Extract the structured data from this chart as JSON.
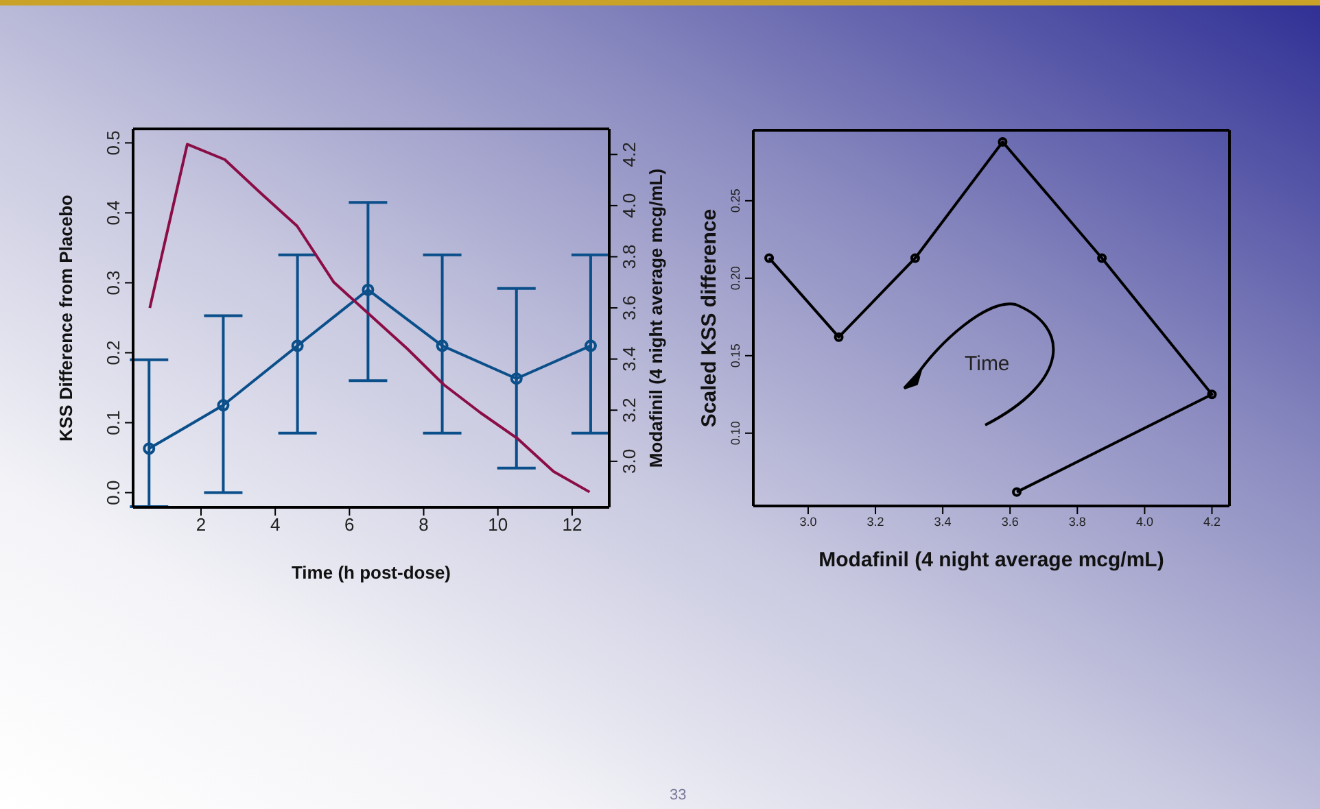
{
  "chart_data": [
    {
      "type": "line",
      "xlabel": "Time (h post-dose)",
      "ylabel": "KSS Difference from Placebo",
      "y2label": "Modafinil (4 night average mcg/mL)",
      "marker": "circle",
      "grid": false,
      "x": [
        0.6,
        2.6,
        4.6,
        6.5,
        8.5,
        10.5,
        12.5
      ],
      "xlim": [
        0.17,
        13.0
      ],
      "xticks": [
        2,
        4,
        6,
        8,
        10,
        12
      ],
      "ylim": [
        -0.021,
        0.52
      ],
      "yticks": [
        {
          "value": 0,
          "label": "0.0"
        },
        0.1,
        0.2,
        0.3,
        0.4,
        0.5
      ],
      "y2lim": [
        2.82,
        4.3
      ],
      "y2ticks": [
        {
          "value": 3,
          "label": "3.0"
        },
        3.2,
        3.4,
        3.6,
        3.8,
        {
          "value": 4,
          "label": "4.0"
        },
        4.2
      ],
      "series": [
        {
          "color": "#0b4f8a",
          "values": [
            0.063,
            0.125,
            0.21,
            0.29,
            0.21,
            0.163,
            0.21
          ],
          "errors": [
            [
              -0.02,
              0.19
            ],
            [
              0.0,
              0.253
            ],
            [
              0.085,
              0.34
            ],
            [
              0.16,
              0.415
            ],
            [
              0.085,
              0.34
            ],
            [
              0.035,
              0.292
            ],
            [
              0.085,
              0.34
            ]
          ]
        },
        {
          "color": "#8b0d45",
          "axis": "y2",
          "marker": "none",
          "x": [
            0.62,
            1.63,
            2.64,
            3.6,
            4.59,
            5.58,
            6.57,
            7.56,
            8.54,
            9.53,
            10.52,
            11.5,
            12.47
          ],
          "values": [
            3.6,
            4.24,
            4.18,
            4.05,
            3.92,
            3.7,
            3.57,
            3.44,
            3.3,
            3.19,
            3.09,
            2.96,
            2.88
          ]
        }
      ]
    },
    {
      "type": "line",
      "xlabel": "Modafinil (4 night average mcg/mL)",
      "ylabel": "Scaled KSS difference",
      "marker": "circle",
      "grid": false,
      "x": [
        2.884,
        3.091,
        3.318,
        3.578,
        3.873,
        4.2,
        3.62
      ],
      "xlim": [
        2.837,
        4.252
      ],
      "xticks": [
        {
          "value": 3,
          "label": "3.0"
        },
        3.2,
        3.4,
        3.6,
        3.8,
        {
          "value": 4,
          "label": "4.0"
        },
        4.2
      ],
      "ylim": [
        0.053,
        0.2955
      ],
      "yticks": [
        {
          "value": 0.1,
          "label": "0.10"
        },
        0.15,
        {
          "value": 0.2,
          "label": "0.20"
        },
        0.25
      ],
      "series": [
        {
          "color": "#000000",
          "values": [
            0.213,
            0.162,
            0.213,
            0.288,
            0.213,
            0.125,
            0.062
          ]
        }
      ],
      "annotations": [
        "Time",
        "33"
      ]
    }
  ]
}
